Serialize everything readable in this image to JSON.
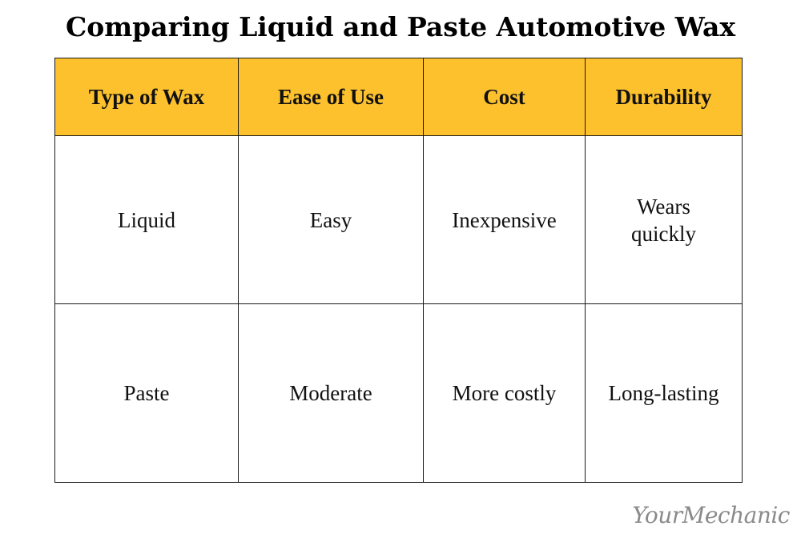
{
  "title": "Comparing Liquid and Paste Automotive Wax",
  "table": {
    "headers": [
      "Type of Wax",
      "Ease of Use",
      "Cost",
      "Durability"
    ],
    "rows": [
      [
        "Liquid",
        "Easy",
        "Inexpensive",
        "Wears quickly"
      ],
      [
        "Paste",
        "Moderate",
        "More costly",
        "Long-lasting"
      ]
    ]
  },
  "colors": {
    "header_background": "#fcc12d",
    "border": "#1a1a1a",
    "logo": "#8a8a8a"
  },
  "logo": "YourMechanic"
}
